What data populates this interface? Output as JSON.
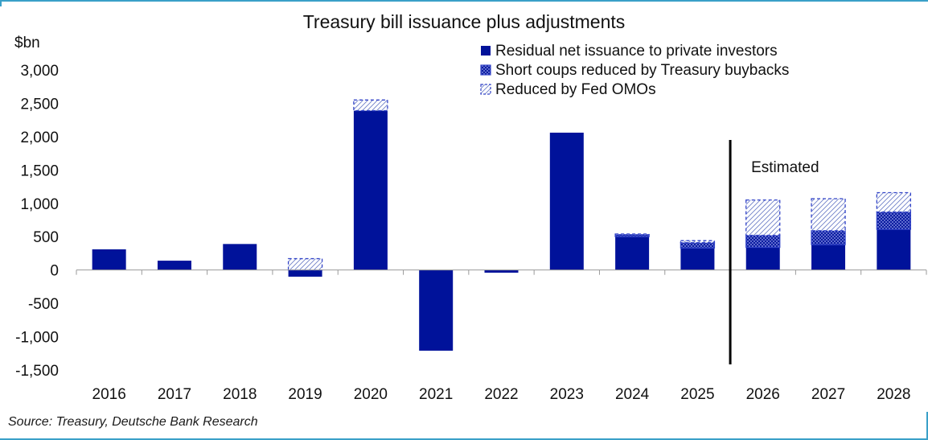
{
  "chart_data": {
    "type": "bar",
    "stacked": true,
    "title": "Treasury bill issuance plus adjustments",
    "ylabel": "$bn",
    "ylim": [
      -1500,
      3000
    ],
    "yticks": [
      -1500,
      -1000,
      -500,
      0,
      500,
      1000,
      1500,
      2000,
      2500,
      3000
    ],
    "ytick_labels": [
      "-1,500",
      "-1,000",
      "-500",
      "0",
      "500",
      "1,000",
      "1,500",
      "2,000",
      "2,500",
      "3,000"
    ],
    "categories": [
      "2016",
      "2017",
      "2018",
      "2019",
      "2020",
      "2021",
      "2022",
      "2023",
      "2024",
      "2025",
      "2026",
      "2027",
      "2028"
    ],
    "series": [
      {
        "name": "Residual net issuance to private investors",
        "color": "#00129a",
        "pattern": "solid",
        "values": [
          310,
          140,
          390,
          -100,
          2390,
          -1210,
          -40,
          2060,
          500,
          330,
          340,
          380,
          610
        ]
      },
      {
        "name": "Short coups reduced by Treasury buybacks",
        "color": "#3344c8",
        "pattern": "crosshatch",
        "values": [
          0,
          0,
          0,
          0,
          0,
          0,
          0,
          0,
          30,
          80,
          180,
          210,
          260
        ]
      },
      {
        "name": "Reduced by Fed OMOs",
        "color": "#3344c8",
        "pattern": "diagonal-dashed",
        "values": [
          0,
          0,
          0,
          170,
          160,
          0,
          0,
          0,
          10,
          30,
          530,
          480,
          290
        ]
      }
    ],
    "annotation": {
      "text": "Estimated",
      "after_category": "2025"
    },
    "legend_position": "top-right",
    "grid": false
  },
  "source": "Source: Treasury, Deutsche Bank Research"
}
